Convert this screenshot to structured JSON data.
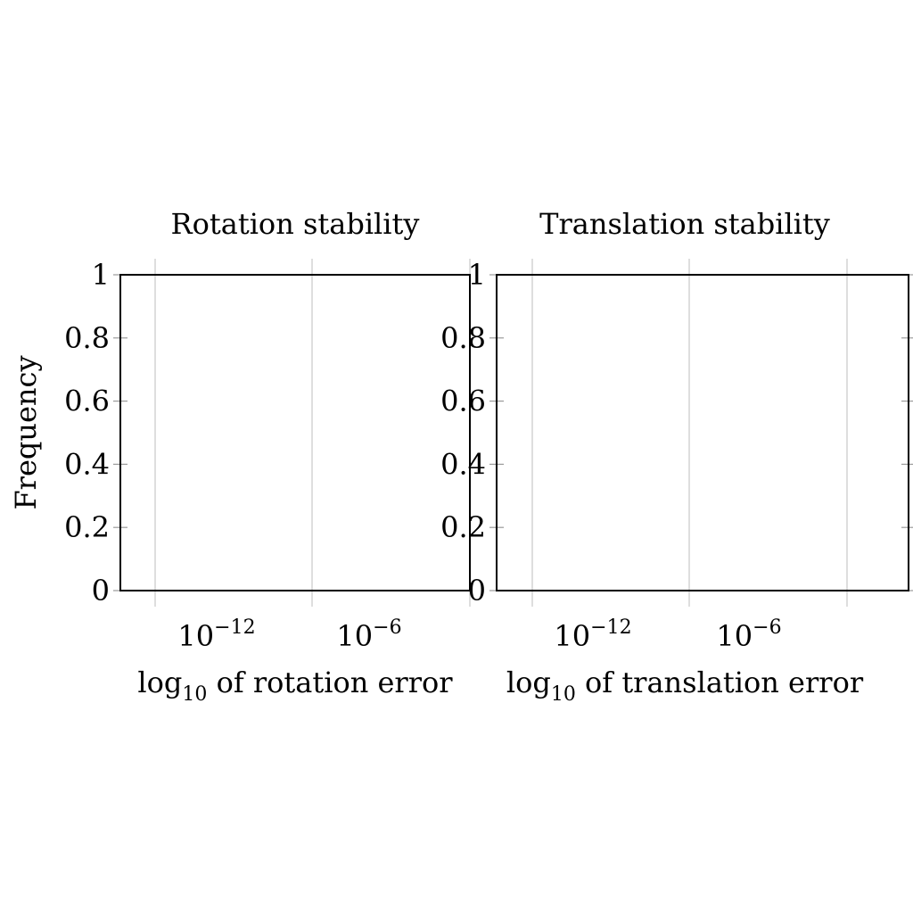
{
  "chart_data": [
    {
      "type": "line",
      "title": "Rotation stability",
      "xlabel": "log10 of rotation error",
      "xlabel_parts": {
        "base": "log",
        "sub": "10",
        "rest": " of rotation error"
      },
      "ylabel": "Frequency",
      "xscale": "log",
      "xticks": [
        {
          "base": "10",
          "exp": "−12"
        },
        {
          "base": "10",
          "exp": "−6"
        }
      ],
      "yticks": [
        "0",
        "0.2",
        "0.4",
        "0.6",
        "0.8",
        "1"
      ],
      "ylim": [
        0,
        1
      ],
      "grid": "x-major",
      "series": []
    },
    {
      "type": "line",
      "title": "Translation stability",
      "xlabel": "log10 of translation error",
      "xlabel_parts": {
        "base": "log",
        "sub": "10",
        "rest": " of translation error"
      },
      "ylabel": "",
      "xscale": "log",
      "xticks": [
        {
          "base": "10",
          "exp": "−12"
        },
        {
          "base": "10",
          "exp": "−6"
        }
      ],
      "yticks": [
        "0",
        "0.2",
        "0.4",
        "0.6",
        "0.8",
        "1"
      ],
      "ylim": [
        0,
        1
      ],
      "grid": "x-major",
      "series": []
    }
  ]
}
